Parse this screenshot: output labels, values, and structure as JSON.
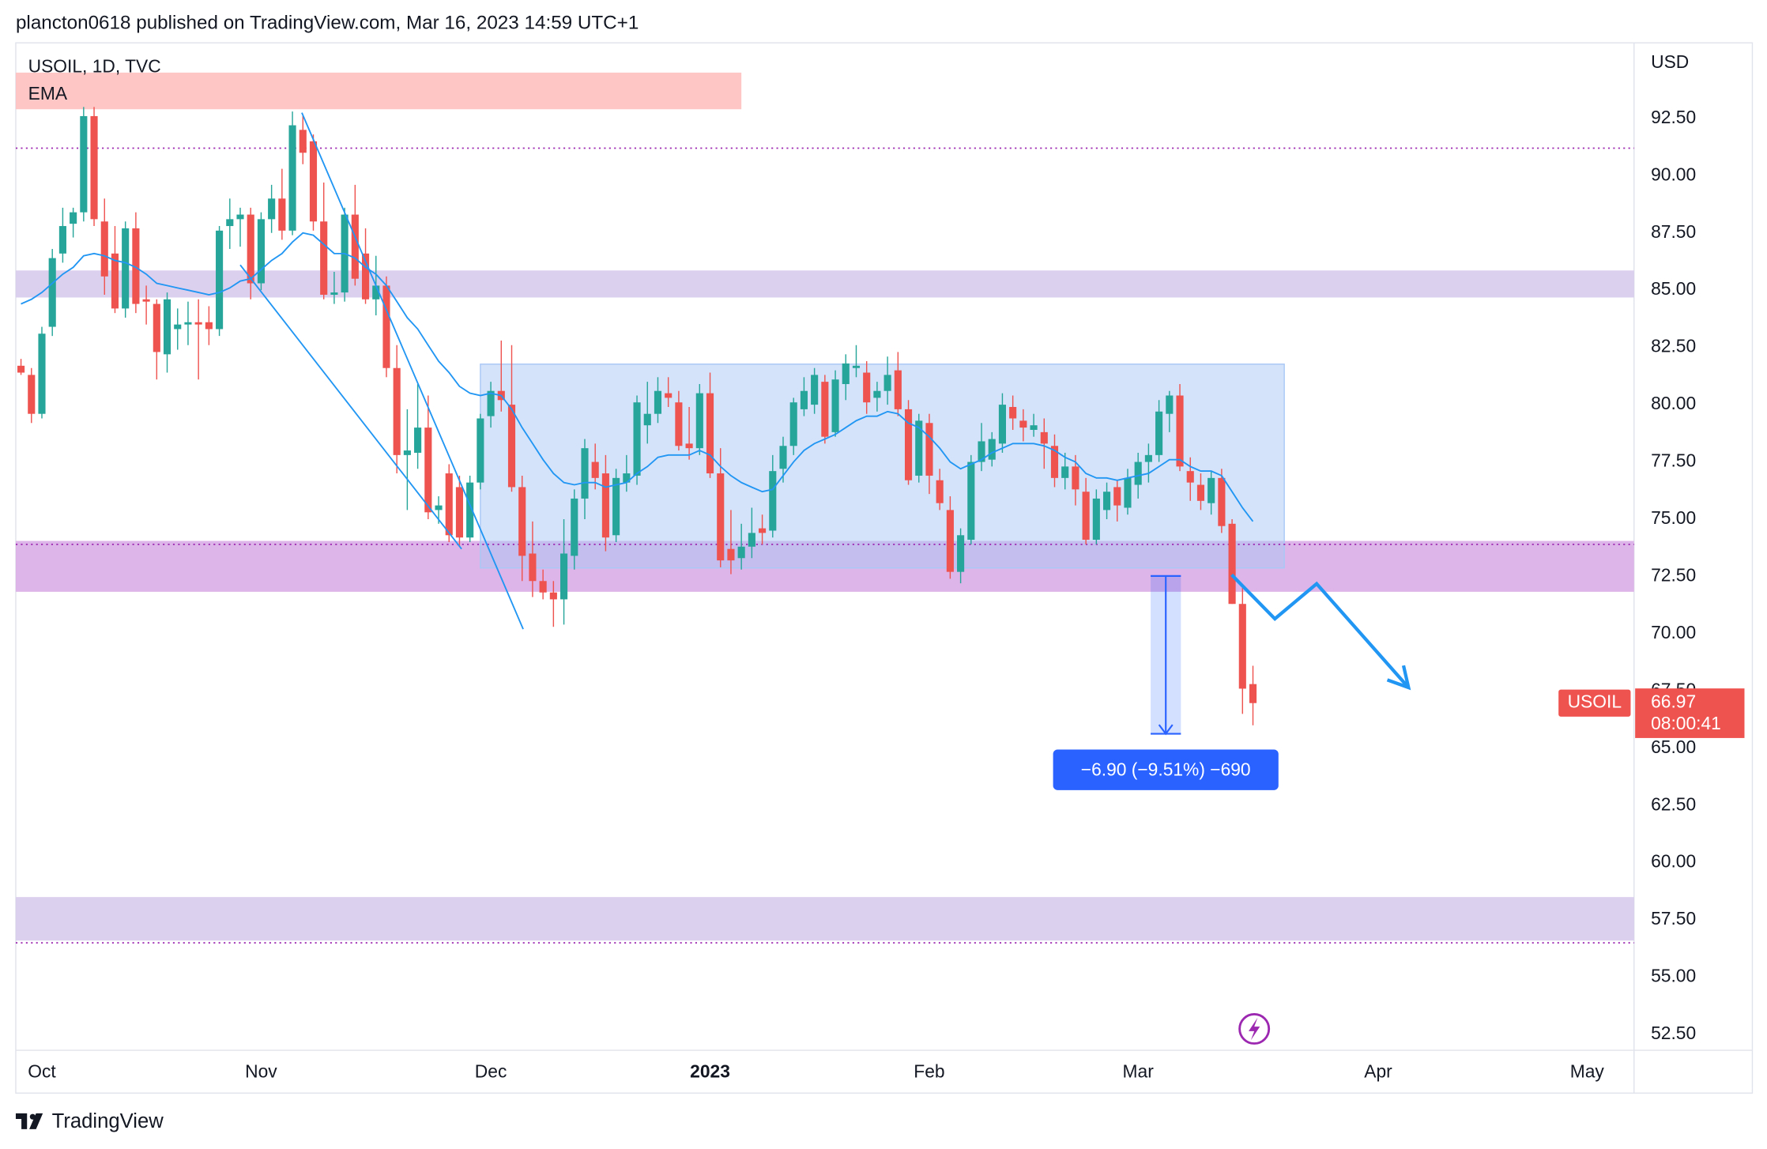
{
  "header": "plancton0618 published on TradingView.com, Mar 16, 2023 14:59 UTC+1",
  "footer": "TradingView",
  "chart_data": {
    "type": "candlestick",
    "title": "USOIL, 1D, TVC",
    "y_unit": "USD",
    "categories": [
      null,
      null,
      "Oct",
      null,
      null,
      null,
      null,
      null,
      null,
      null,
      null,
      null,
      null,
      null,
      null,
      null,
      null,
      null,
      null,
      null,
      null,
      null,
      null,
      "Nov",
      null,
      null,
      null,
      null,
      null,
      null,
      null,
      null,
      null,
      null,
      null,
      null,
      null,
      null,
      null,
      null,
      null,
      null,
      null,
      null,
      null,
      "Dec",
      null,
      null,
      null,
      null,
      null,
      null,
      null,
      null,
      null,
      null,
      null,
      null,
      null,
      null,
      null,
      null,
      null,
      null,
      null,
      null,
      "2023",
      null,
      null,
      null,
      null,
      null,
      null,
      null,
      null,
      null,
      null,
      null,
      null,
      null,
      null,
      null,
      null,
      null,
      null,
      null,
      null,
      "Feb",
      null,
      null,
      null,
      null,
      null,
      null,
      null,
      null,
      null,
      null,
      null,
      null,
      null,
      null,
      null,
      null,
      null,
      null,
      null,
      "Mar",
      null,
      null,
      null,
      null,
      null,
      null,
      null,
      null,
      null,
      null,
      null,
      null,
      null,
      null,
      null,
      null,
      null,
      null,
      null,
      null,
      null,
      null,
      "Apr",
      null,
      null,
      null,
      null,
      null,
      null,
      null,
      null,
      null,
      null,
      null,
      null,
      null,
      null,
      null,
      null,
      null,
      null,
      null,
      "May",
      null,
      null,
      null,
      null
    ],
    "series": [
      {
        "name": "USOIL",
        "up_color": "#26a69a",
        "down_color": "#ef5350",
        "open": [
          81.7,
          81.3,
          79.6,
          83.4,
          86.6,
          87.9,
          88.4,
          92.6,
          88.0,
          86.6,
          84.2,
          87.7,
          84.6,
          84.4,
          82.2,
          83.3,
          83.5,
          83.6,
          83.6,
          83.3,
          87.8,
          88.1,
          88.3,
          85.3,
          88.1,
          89.0,
          87.6,
          92.0,
          91.5,
          88.0,
          84.8,
          84.9,
          88.3,
          86.6,
          84.6,
          85.2,
          81.6,
          77.8,
          77.9,
          79.0,
          75.4,
          77.0,
          76.4,
          74.2,
          76.6,
          79.5,
          80.6,
          80.0,
          76.4,
          73.5,
          72.3,
          71.8,
          71.5,
          73.4,
          75.9,
          77.5,
          77.0,
          74.3,
          76.6,
          76.9,
          79.1,
          79.6,
          80.5,
          80.1,
          78.3,
          78.1,
          80.5,
          77.0,
          73.7,
          73.3,
          73.8,
          74.6,
          74.5,
          77.2,
          78.2,
          79.8,
          80.0,
          81.0,
          78.8,
          80.9,
          81.6,
          81.4,
          80.3,
          80.6,
          81.5,
          79.8,
          76.9,
          79.2,
          76.7,
          75.4,
          72.7,
          74.1,
          77.5,
          77.6,
          78.3,
          79.9,
          79.3,
          78.9,
          78.8,
          78.2,
          76.8,
          77.3,
          76.2,
          74.1,
          75.4,
          76.4,
          75.5,
          76.5,
          77.5,
          77.8,
          79.6,
          80.4,
          77.1,
          76.5,
          75.7,
          76.8,
          74.8,
          71.3,
          67.8,
          null,
          null,
          null,
          null,
          null,
          null,
          null,
          null,
          null,
          null,
          null,
          null,
          null,
          null,
          null,
          null,
          null,
          null,
          null,
          null,
          null,
          null,
          null,
          null,
          null,
          null,
          null,
          null,
          null,
          null,
          null,
          null,
          null,
          null,
          null,
          null
        ],
        "high": [
          82.0,
          81.6,
          83.4,
          86.8,
          88.6,
          88.6,
          93.0,
          93.0,
          89.0,
          87.8,
          88.0,
          88.4,
          85.2,
          84.6,
          84.9,
          84.2,
          84.5,
          84.6,
          84.3,
          87.8,
          89.0,
          88.6,
          88.6,
          88.4,
          89.6,
          90.3,
          92.8,
          92.6,
          91.8,
          89.7,
          85.8,
          88.6,
          89.6,
          87.7,
          86.5,
          85.6,
          82.6,
          79.8,
          80.9,
          80.4,
          76.0,
          77.4,
          76.9,
          76.9,
          79.6,
          81.0,
          82.8,
          82.6,
          76.9,
          74.9,
          72.8,
          72.3,
          75.0,
          76.3,
          78.5,
          78.3,
          77.8,
          77.2,
          77.8,
          80.4,
          81.0,
          81.2,
          81.2,
          80.6,
          79.9,
          80.9,
          81.4,
          78.1,
          75.4,
          74.8,
          75.5,
          75.2,
          77.8,
          78.6,
          80.3,
          81.2,
          81.6,
          81.3,
          81.5,
          82.2,
          82.6,
          81.9,
          81.0,
          82.1,
          82.3,
          80.2,
          79.6,
          79.6,
          77.2,
          76.0,
          74.6,
          77.8,
          79.2,
          78.8,
          80.5,
          80.4,
          79.8,
          79.6,
          79.4,
          78.7,
          77.9,
          77.8,
          76.8,
          76.3,
          76.6,
          76.7,
          77.2,
          77.9,
          78.3,
          80.2,
          80.6,
          80.9,
          77.7,
          77.0,
          77.1,
          77.2,
          75.0,
          72.0,
          68.6,
          null,
          null,
          null,
          null,
          null,
          null,
          null,
          null,
          null,
          null,
          null,
          null,
          null,
          null,
          null,
          null,
          null,
          null,
          null,
          null,
          null,
          null,
          null,
          null,
          null,
          null,
          null,
          null,
          null,
          null,
          null,
          null,
          null,
          null,
          null,
          null
        ],
        "low": [
          81.3,
          79.2,
          79.4,
          83.0,
          86.2,
          87.3,
          88.0,
          87.8,
          84.8,
          84.0,
          83.8,
          84.0,
          83.5,
          81.1,
          81.4,
          82.4,
          82.6,
          81.1,
          82.6,
          83.0,
          86.8,
          86.9,
          84.6,
          85.0,
          87.5,
          87.2,
          87.4,
          90.5,
          87.6,
          84.6,
          84.4,
          84.5,
          85.2,
          84.4,
          83.9,
          81.2,
          77.0,
          75.4,
          77.2,
          75.0,
          74.8,
          74.0,
          73.8,
          74.0,
          76.3,
          79.0,
          79.7,
          76.2,
          72.3,
          71.6,
          71.5,
          70.3,
          70.4,
          72.8,
          75.0,
          76.3,
          73.6,
          74.0,
          76.2,
          76.5,
          78.3,
          79.2,
          79.9,
          78.0,
          77.6,
          77.8,
          76.8,
          72.9,
          72.6,
          72.8,
          73.3,
          73.9,
          74.2,
          76.6,
          77.8,
          79.5,
          79.6,
          78.3,
          78.6,
          80.2,
          81.2,
          79.6,
          79.7,
          80.0,
          79.5,
          76.5,
          76.6,
          76.1,
          75.4,
          72.4,
          72.2,
          73.9,
          77.1,
          77.3,
          77.9,
          78.9,
          78.4,
          78.6,
          77.2,
          76.4,
          76.3,
          75.6,
          73.9,
          73.9,
          75.0,
          74.9,
          75.2,
          75.9,
          76.6,
          77.5,
          78.8,
          77.1,
          75.8,
          75.4,
          75.2,
          74.4,
          71.3,
          66.5,
          66.0,
          null,
          null,
          null,
          null,
          null,
          null,
          null,
          null,
          null,
          null,
          null,
          null,
          null,
          null,
          null,
          null,
          null,
          null,
          null,
          null,
          null,
          null,
          null,
          null,
          null,
          null,
          null,
          null,
          null,
          null,
          null,
          null,
          null,
          null,
          null,
          null
        ],
        "close": [
          81.4,
          79.6,
          83.1,
          86.4,
          87.8,
          88.4,
          92.6,
          88.1,
          85.6,
          84.2,
          87.7,
          84.4,
          84.5,
          82.3,
          84.6,
          83.5,
          83.6,
          83.5,
          83.3,
          87.6,
          88.1,
          88.3,
          85.3,
          88.1,
          89.0,
          87.6,
          92.2,
          91.0,
          88.0,
          84.8,
          84.9,
          88.3,
          85.5,
          84.6,
          85.2,
          81.6,
          77.8,
          78.0,
          79.0,
          75.3,
          75.6,
          74.3,
          74.2,
          76.6,
          79.4,
          80.6,
          80.2,
          76.4,
          73.4,
          72.3,
          71.8,
          71.5,
          73.5,
          75.9,
          78.1,
          76.8,
          74.2,
          76.8,
          77.0,
          80.1,
          79.6,
          80.6,
          80.3,
          78.2,
          78.1,
          80.5,
          77.0,
          73.2,
          73.2,
          73.8,
          74.4,
          74.4,
          77.1,
          78.2,
          80.1,
          80.6,
          81.3,
          78.6,
          81.1,
          81.8,
          81.7,
          80.1,
          80.6,
          81.3,
          79.8,
          76.7,
          79.3,
          76.9,
          75.7,
          72.7,
          74.3,
          77.5,
          78.4,
          78.5,
          80.0,
          79.4,
          79.0,
          79.1,
          78.3,
          76.8,
          77.3,
          76.3,
          74.1,
          75.9,
          76.2,
          75.6,
          76.8,
          77.5,
          77.8,
          79.7,
          80.4,
          77.3,
          76.6,
          75.8,
          76.8,
          74.7,
          71.3,
          67.6,
          66.97,
          null,
          null,
          null,
          null,
          null,
          null,
          null,
          null,
          null,
          null,
          null,
          null,
          null,
          null,
          null,
          null,
          null,
          null,
          null,
          null,
          null,
          null,
          null,
          null,
          null,
          null,
          null,
          null,
          null,
          null,
          null,
          null,
          null,
          null,
          null,
          null
        ]
      },
      {
        "name": "EMA",
        "type": "line",
        "color": "#2196f3",
        "values": [
          84.4,
          84.6,
          84.9,
          85.3,
          85.7,
          86.0,
          86.5,
          86.6,
          86.5,
          86.3,
          86.2,
          86.0,
          85.7,
          85.3,
          85.2,
          85.1,
          85.0,
          84.9,
          84.8,
          84.9,
          85.1,
          85.4,
          85.5,
          85.9,
          86.3,
          86.6,
          87.1,
          87.5,
          87.4,
          87.0,
          86.6,
          86.6,
          86.4,
          86.0,
          85.7,
          85.2,
          84.5,
          83.8,
          83.3,
          82.6,
          81.9,
          81.4,
          80.8,
          80.5,
          80.4,
          80.5,
          80.4,
          79.8,
          79.0,
          78.3,
          77.6,
          77.0,
          76.6,
          76.5,
          76.6,
          76.6,
          76.4,
          76.5,
          76.6,
          77.0,
          77.3,
          77.7,
          77.8,
          77.8,
          77.8,
          78.0,
          77.8,
          77.3,
          76.9,
          76.6,
          76.4,
          76.2,
          76.3,
          76.9,
          77.5,
          78.0,
          78.3,
          78.5,
          78.7,
          79.0,
          79.3,
          79.5,
          79.5,
          79.7,
          79.6,
          79.2,
          79.0,
          78.6,
          78.1,
          77.5,
          77.2,
          77.4,
          77.6,
          77.9,
          78.1,
          78.3,
          78.3,
          78.3,
          78.2,
          78.0,
          77.7,
          77.5,
          77.0,
          76.8,
          76.8,
          76.7,
          76.8,
          76.9,
          77.0,
          77.3,
          77.6,
          77.6,
          77.3,
          77.1,
          77.1,
          76.9,
          76.2,
          75.5,
          74.9,
          null,
          null,
          null,
          null,
          null,
          null,
          null,
          null,
          null,
          null,
          null,
          null,
          null,
          null,
          null,
          null,
          null,
          null,
          null,
          null,
          null,
          null,
          null,
          null,
          null,
          null,
          null,
          null,
          null,
          null,
          null,
          null,
          null,
          null,
          null,
          null
        ]
      }
    ],
    "last_price_countdown": "08:00:41",
    "ylim": [
      51.81,
      95.8
    ],
    "yticks": [
      {
        "value": 52.5,
        "label": "52.50"
      },
      {
        "value": 55,
        "label": "55.00"
      },
      {
        "value": 57.5,
        "label": "57.50"
      },
      {
        "value": 60,
        "label": "60.00"
      },
      {
        "value": 62.5,
        "label": "62.50"
      },
      {
        "value": 65,
        "label": "65.00"
      },
      {
        "value": 67.5,
        "label": "67.50"
      },
      {
        "value": 70,
        "label": "70.00"
      },
      {
        "value": 72.5,
        "label": "72.50"
      },
      {
        "value": 75,
        "label": "75.00"
      },
      {
        "value": 77.5,
        "label": "77.50"
      },
      {
        "value": 80,
        "label": "80.00"
      },
      {
        "value": 82.5,
        "label": "82.50"
      },
      {
        "value": 85,
        "label": "85.00"
      },
      {
        "value": 87.5,
        "label": "87.50"
      },
      {
        "value": 90,
        "label": "90.00"
      },
      {
        "value": 92.5,
        "label": "92.50"
      }
    ],
    "grid": false,
    "zones": [
      {
        "y": [
          92.9,
          94.5
        ],
        "x": [
          -0.5,
          69.0
        ],
        "color": "#ffbcbc"
      },
      {
        "y": [
          84.68,
          85.86
        ],
        "color": "#d6c8ec"
      },
      {
        "y": [
          71.83,
          74.05
        ],
        "color": "#d8a8e4"
      },
      {
        "y": [
          56.6,
          58.5
        ],
        "color": "#d6c8ec"
      },
      {
        "y": [
          72.87,
          81.77
        ],
        "x": [
          44.0,
          121.0
        ],
        "color": "#a9c8f5"
      }
    ],
    "levels": [
      {
        "y": 91.2,
        "color": "#9c27b0"
      },
      {
        "y": 73.9,
        "color": "#9c27b0"
      },
      {
        "y": 56.5,
        "color": "#9c27b0"
      }
    ],
    "trend_lines": [
      {
        "x": [
          26.9,
          48.1
        ],
        "y": [
          92.75,
          70.2
        ],
        "color": "#2196f3"
      },
      {
        "x": [
          21.0,
          42.2
        ],
        "y": [
          86.1,
          73.7
        ],
        "color": "#2196f3"
      }
    ],
    "projection": {
      "x": [
        115.96,
        120.1,
        124.1,
        132.9
      ],
      "y": [
        72.57,
        70.65,
        72.18,
        67.65
      ],
      "color": "#2196f3"
    },
    "measure": {
      "x": [
        108.2,
        111.1
      ],
      "y": [
        72.52,
        65.63
      ],
      "label": "−6.90 (−9.51%) −690",
      "color": "#2962ff"
    }
  }
}
